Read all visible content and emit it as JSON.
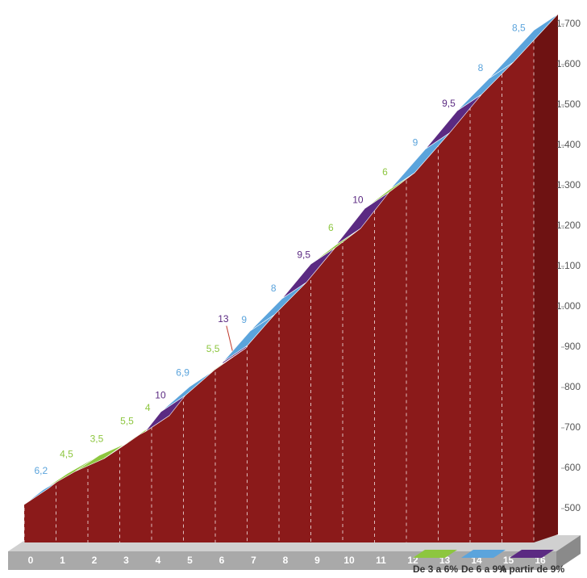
{
  "chart_data": {
    "type": "climb-profile",
    "x": [
      0,
      0.6,
      1.6,
      2.5,
      3.5,
      3.8,
      4.3,
      5.2,
      6.2,
      6.25,
      7.1,
      8.1,
      9.0,
      9.8,
      10.7,
      11.5,
      12.6,
      13.6,
      14.6,
      16
    ],
    "values": [
      530,
      567,
      612,
      643.5,
      698.5,
      710.5,
      760.5,
      822.5,
      877.5,
      884,
      960.5,
      1040.5,
      1126,
      1174,
      1264,
      1312,
      1411,
      1506,
      1586,
      1705
    ],
    "gradients": {
      "values": [
        6.2,
        4.5,
        3.5,
        5.5,
        4,
        10,
        6.9,
        5.5,
        13,
        9,
        8,
        9.5,
        6,
        10,
        6,
        9,
        9.5,
        8,
        8.5
      ],
      "value_labels": [
        "6,2",
        "4,5",
        "3,5",
        "5,5",
        "4",
        "10",
        "6,9",
        "5,5",
        "13",
        "9",
        "8",
        "9,5",
        "6",
        "10",
        "6",
        "9",
        "9,5",
        "8",
        "8,5"
      ],
      "colors": [
        "#5ba4dc",
        "#8dc63f",
        "#8dc63f",
        "#8dc63f",
        "#8dc63f",
        "#5b2a82",
        "#5ba4dc",
        "#8dc63f",
        "#5b2a82",
        "#5ba4dc",
        "#5ba4dc",
        "#5b2a82",
        "#8dc63f",
        "#5b2a82",
        "#8dc63f",
        "#5ba4dc",
        "#5b2a82",
        "#5ba4dc",
        "#5ba4dc"
      ]
    },
    "area_color": "#8b1a1a",
    "xlim": [
      0,
      16
    ],
    "xticks": [
      0,
      1,
      2,
      3,
      4,
      5,
      6,
      7,
      8,
      9,
      10,
      11,
      12,
      13,
      14,
      15,
      16
    ],
    "ylim": [
      500,
      1700
    ],
    "yticks": [
      500,
      600,
      700,
      800,
      900,
      {
        "value": 1000,
        "label": "1.000"
      },
      {
        "value": 1100,
        "label": "1.100"
      },
      {
        "value": 1200,
        "label": "1.200"
      },
      {
        "value": 1300,
        "label": "1.300"
      },
      {
        "value": 1400,
        "label": "1.400"
      },
      {
        "value": 1500,
        "label": "1.500"
      },
      {
        "value": 1600,
        "label": "1.600"
      },
      {
        "value": 1700,
        "label": "1.700"
      }
    ],
    "legend": [
      {
        "name": "De 3 a 6%",
        "color": "#8dc63f"
      },
      {
        "name": "De 6 a 9%",
        "color": "#5ba4dc"
      },
      {
        "name": "A partir de 9%",
        "color": "#5b2a82"
      }
    ]
  }
}
